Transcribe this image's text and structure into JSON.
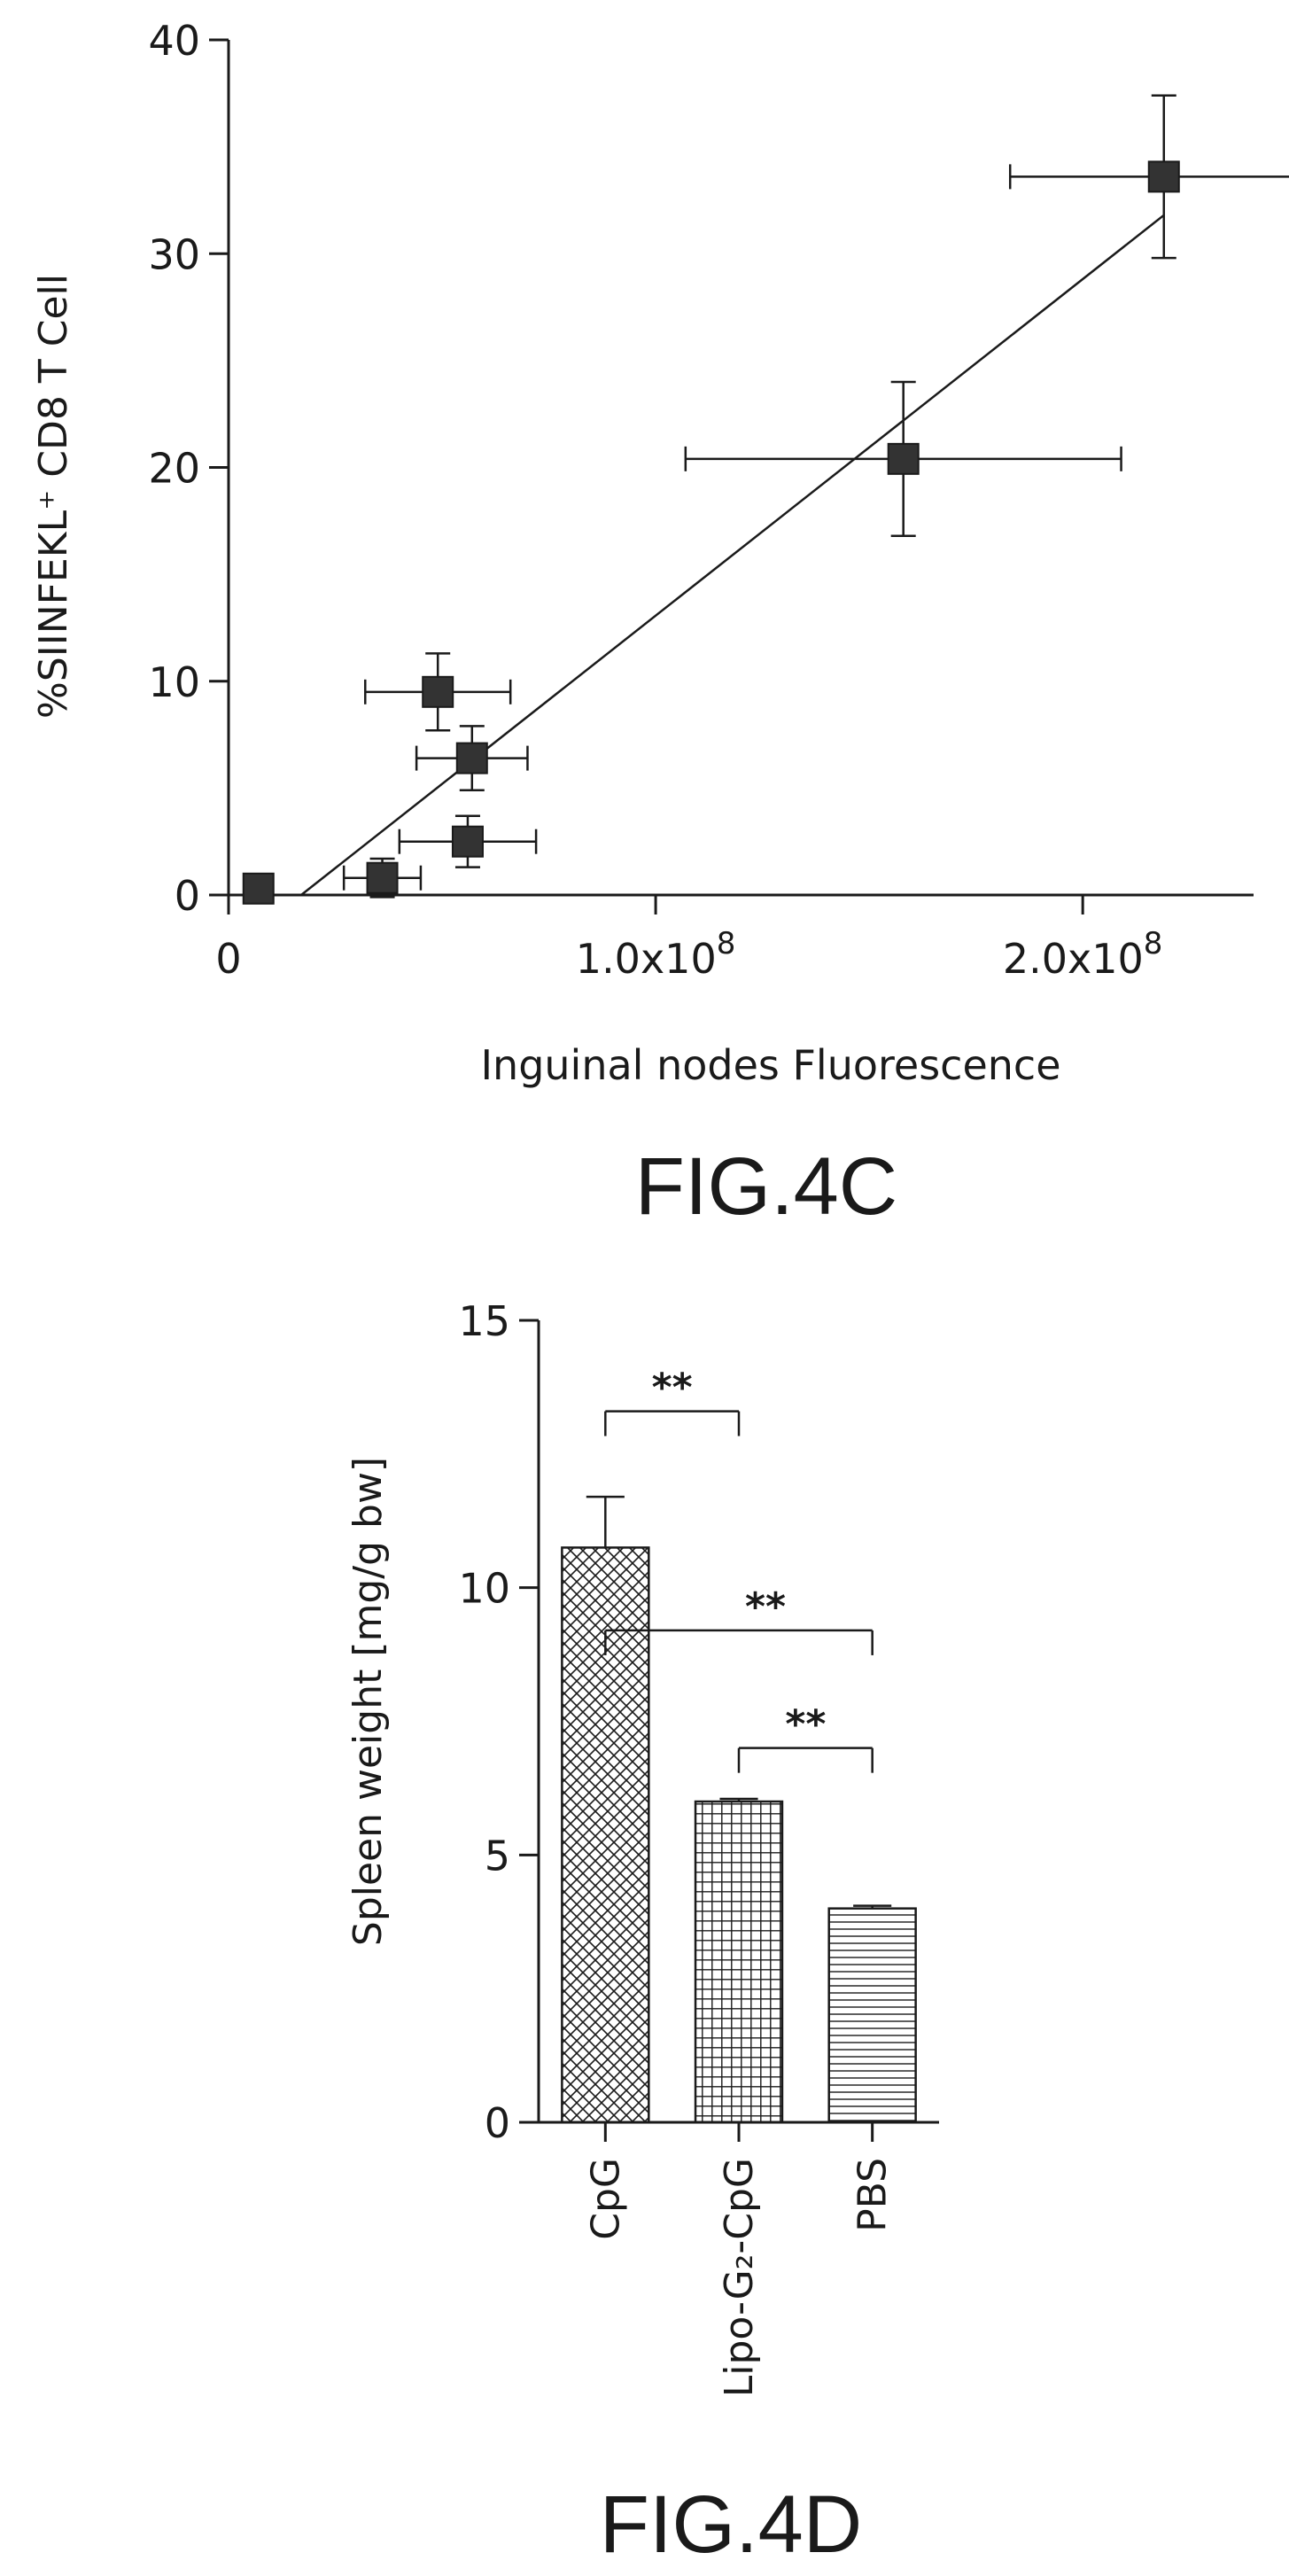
{
  "colors": {
    "ink": "#1a1a1a",
    "marker": "#333333",
    "background": "#ffffff"
  },
  "chart_data": [
    {
      "type": "scatter",
      "caption": "FIG.4C",
      "xlabel": "Inguinal nodes Fluorescence",
      "ylabel": "%SIINFEKL⁺ CD8  T Cell",
      "xlim": [
        0,
        240000000
      ],
      "ylim": [
        0,
        40
      ],
      "yticks": [
        0,
        10,
        20,
        30,
        40
      ],
      "ytick_labels": [
        "0",
        "10",
        "20",
        "30",
        "40"
      ],
      "xticks": [
        0,
        100000000,
        200000000
      ],
      "xtick_labels": [
        {
          "base": "0",
          "exp": ""
        },
        {
          "base": "1.0x10",
          "exp": "8"
        },
        {
          "base": "2.0x10",
          "exp": "8"
        }
      ],
      "grid": false,
      "series": [
        {
          "points": [
            {
              "x": 7000000,
              "y": 0.3,
              "xerr": 0,
              "yerr": 0
            },
            {
              "x": 36000000,
              "y": 0.8,
              "xerr": 9000000,
              "yerr": 0.9
            },
            {
              "x": 56000000,
              "y": 2.5,
              "xerr": 16000000,
              "yerr": 1.2
            },
            {
              "x": 57000000,
              "y": 6.4,
              "xerr": 13000000,
              "yerr": 1.5
            },
            {
              "x": 49000000,
              "y": 9.5,
              "xerr": 17000000,
              "yerr": 1.8
            },
            {
              "x": 158000000,
              "y": 20.4,
              "xerr": 51000000,
              "yerr": 3.6
            },
            {
              "x": 219000000,
              "y": 33.6,
              "xerr": 36000000,
              "yerr": 3.8
            }
          ]
        }
      ],
      "fit_line": {
        "x": [
          17000000,
          219000000
        ],
        "y": [
          0,
          31.8
        ]
      }
    },
    {
      "type": "bar",
      "caption": "FIG.4D",
      "xlabel": "",
      "ylabel": "Spleen weight [mg/g bw]",
      "ylim": [
        0,
        15
      ],
      "yticks": [
        0,
        5,
        10,
        15
      ],
      "ytick_labels": [
        "0",
        "5",
        "10",
        "15"
      ],
      "categories": [
        "CpG",
        "Lipo-G₂-CpG",
        "PBS"
      ],
      "values": [
        10.75,
        6.0,
        4.0
      ],
      "errors": [
        0.95,
        0.05,
        0.05
      ],
      "patterns": [
        "crosshatch",
        "grid",
        "horizontal"
      ],
      "grid": false,
      "significance": [
        {
          "from": 0,
          "to": 1,
          "label": "**"
        },
        {
          "from": 0,
          "to": 2,
          "label": "**"
        },
        {
          "from": 1,
          "to": 2,
          "label": "**"
        }
      ]
    }
  ]
}
